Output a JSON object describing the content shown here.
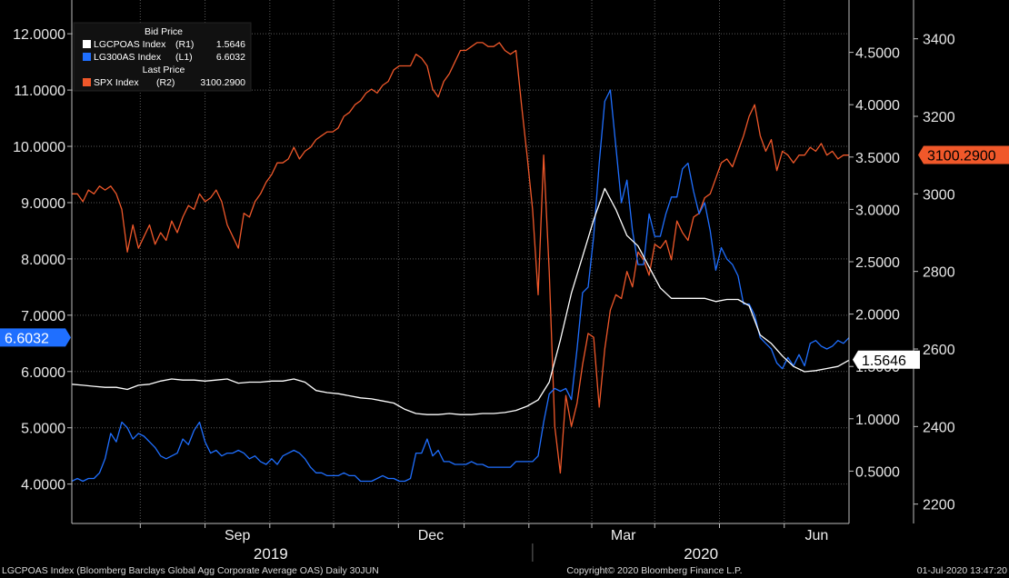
{
  "chart_data": {
    "type": "line",
    "legend": {
      "bid_header": "Bid Price",
      "last_header": "Last Price",
      "entries": [
        {
          "name": "LGCPOAS Index",
          "axis": "(R1)",
          "value": "1.5646",
          "color": "#ffffff"
        },
        {
          "name": "LG300AS Index",
          "axis": "(L1)",
          "value": "6.6032",
          "color": "#1f6fff"
        },
        {
          "name": "SPX Index",
          "axis": "(R2)",
          "value": "3100.2900",
          "color": "#f0582a"
        }
      ],
      "placement": "top-left"
    },
    "x_ticks": [
      "Sep",
      "Dec",
      "Mar",
      "Jun"
    ],
    "x_years": [
      "2019",
      "2020"
    ],
    "left_axis": {
      "ylim": [
        3.3,
        12.6
      ],
      "ticks": [
        "4.0000",
        "5.0000",
        "6.0000",
        "7.0000",
        "8.0000",
        "9.0000",
        "10.0000",
        "11.0000",
        "12.0000"
      ]
    },
    "right1_axis": {
      "ylim": [
        0.0,
        5.0
      ],
      "ticks": [
        "0.5000",
        "1.0000",
        "1.5000",
        "2.0000",
        "2.5000",
        "3.0000",
        "3.5000",
        "4.0000",
        "4.5000"
      ]
    },
    "right2_axis": {
      "ylim": [
        2150,
        3500
      ],
      "ticks": [
        "2200",
        "2400",
        "2600",
        "2800",
        "3000",
        "3200",
        "3400"
      ]
    },
    "last_value_tags": {
      "left": "6.6032",
      "right1": "1.5646",
      "right2": "3100.2900"
    },
    "grid": true,
    "series": [
      {
        "name": "LG300AS Index",
        "axis": "left",
        "color": "#1f6fff",
        "x": [
          0,
          6,
          12,
          18,
          24,
          30,
          36,
          42,
          48,
          54,
          60,
          66,
          72,
          78,
          84,
          90,
          96,
          102,
          108,
          114,
          120,
          126,
          132,
          138,
          144,
          150,
          156,
          162,
          168,
          174,
          180,
          186,
          192,
          198,
          204,
          210,
          216,
          222,
          228,
          234,
          240,
          246,
          252,
          258,
          264,
          270,
          276,
          282,
          288,
          294,
          300,
          306,
          312,
          318,
          324,
          330,
          336,
          342,
          348,
          354,
          360,
          366,
          372,
          378,
          384,
          390,
          396,
          402,
          408,
          414,
          420,
          426,
          432,
          438,
          444,
          450,
          456,
          462,
          468,
          474,
          480,
          486,
          492,
          498,
          504,
          510,
          516,
          522,
          528,
          534,
          540,
          546,
          552,
          558,
          564,
          570,
          576,
          582,
          588,
          594,
          600,
          606,
          612,
          618,
          624,
          630,
          636,
          642,
          648,
          654,
          660,
          666,
          672,
          678,
          684,
          690,
          696,
          702,
          708,
          714,
          720,
          726,
          732,
          738,
          744,
          750,
          756,
          762,
          768,
          774,
          780,
          786,
          792,
          798,
          804,
          810,
          816,
          822,
          828,
          834,
          840
        ],
        "values": [
          4.05,
          4.1,
          4.05,
          4.1,
          4.1,
          4.2,
          4.45,
          4.9,
          4.75,
          5.1,
          5.0,
          4.8,
          4.9,
          4.85,
          4.75,
          4.65,
          4.5,
          4.45,
          4.5,
          4.55,
          4.8,
          4.7,
          4.95,
          5.1,
          4.75,
          4.55,
          4.6,
          4.5,
          4.55,
          4.55,
          4.6,
          4.55,
          4.45,
          4.5,
          4.4,
          4.35,
          4.45,
          4.35,
          4.5,
          4.55,
          4.6,
          4.55,
          4.45,
          4.3,
          4.2,
          4.2,
          4.15,
          4.15,
          4.15,
          4.2,
          4.15,
          4.15,
          4.05,
          4.05,
          4.05,
          4.1,
          4.15,
          4.1,
          4.1,
          4.05,
          4.05,
          4.1,
          4.55,
          4.55,
          4.8,
          4.5,
          4.6,
          4.4,
          4.4,
          4.35,
          4.35,
          4.35,
          4.4,
          4.35,
          4.35,
          4.3,
          4.3,
          4.3,
          4.3,
          4.3,
          4.4,
          4.4,
          4.4,
          4.4,
          4.5,
          5.1,
          5.6,
          5.7,
          5.65,
          5.7,
          5.5,
          6.4,
          7.4,
          7.5,
          8.4,
          9.7,
          10.8,
          11.0,
          10.0,
          9.0,
          9.4,
          8.5,
          7.9,
          7.9,
          8.8,
          8.4,
          8.4,
          8.8,
          9.1,
          9.1,
          9.6,
          9.7,
          9.2,
          8.8,
          9.0,
          8.5,
          7.8,
          8.2,
          8.0,
          7.9,
          7.7,
          7.2,
          7.2,
          7.0,
          6.6,
          6.5,
          6.4,
          6.15,
          6.05,
          6.25,
          6.1,
          6.3,
          6.1,
          6.5,
          6.55,
          6.45,
          6.4,
          6.45,
          6.55,
          6.5,
          6.6
        ]
      },
      {
        "name": "LGCPOAS Index",
        "axis": "right1",
        "color": "#ffffff",
        "x": [
          0,
          12,
          24,
          36,
          48,
          60,
          72,
          84,
          96,
          108,
          120,
          132,
          144,
          156,
          168,
          180,
          192,
          204,
          216,
          228,
          240,
          252,
          264,
          276,
          288,
          300,
          312,
          324,
          336,
          348,
          360,
          372,
          384,
          396,
          408,
          420,
          432,
          444,
          456,
          468,
          480,
          492,
          504,
          516,
          528,
          540,
          552,
          564,
          576,
          588,
          600,
          612,
          624,
          636,
          648,
          660,
          672,
          684,
          696,
          708,
          720,
          732,
          744,
          756,
          768,
          780,
          792,
          804,
          816,
          828,
          840
        ],
        "values": [
          1.33,
          1.32,
          1.31,
          1.3,
          1.3,
          1.28,
          1.32,
          1.33,
          1.36,
          1.38,
          1.37,
          1.37,
          1.36,
          1.37,
          1.38,
          1.34,
          1.35,
          1.35,
          1.36,
          1.36,
          1.38,
          1.35,
          1.27,
          1.25,
          1.24,
          1.22,
          1.2,
          1.19,
          1.17,
          1.15,
          1.09,
          1.05,
          1.04,
          1.04,
          1.05,
          1.04,
          1.04,
          1.05,
          1.05,
          1.06,
          1.08,
          1.12,
          1.18,
          1.35,
          1.75,
          2.2,
          2.55,
          2.9,
          3.2,
          3.0,
          2.75,
          2.65,
          2.45,
          2.25,
          2.15,
          2.15,
          2.15,
          2.15,
          2.12,
          2.14,
          2.14,
          2.08,
          1.8,
          1.72,
          1.6,
          1.5,
          1.45,
          1.46,
          1.48,
          1.5,
          1.56
        ]
      },
      {
        "name": "SPX Index",
        "axis": "right2",
        "color": "#f0582a",
        "x": [
          0,
          6,
          12,
          18,
          24,
          30,
          36,
          42,
          48,
          54,
          60,
          66,
          72,
          78,
          84,
          90,
          96,
          102,
          108,
          114,
          120,
          126,
          132,
          138,
          144,
          150,
          156,
          162,
          168,
          174,
          180,
          186,
          192,
          198,
          204,
          210,
          216,
          222,
          228,
          234,
          240,
          246,
          252,
          258,
          264,
          270,
          276,
          282,
          288,
          294,
          300,
          306,
          312,
          318,
          324,
          330,
          336,
          342,
          348,
          354,
          360,
          366,
          372,
          378,
          384,
          390,
          396,
          402,
          408,
          414,
          420,
          426,
          432,
          438,
          444,
          450,
          456,
          462,
          468,
          474,
          480,
          486,
          492,
          498,
          504,
          510,
          516,
          522,
          528,
          534,
          540,
          546,
          552,
          558,
          564,
          570,
          576,
          582,
          588,
          594,
          600,
          606,
          612,
          618,
          624,
          630,
          636,
          642,
          648,
          654,
          660,
          666,
          672,
          678,
          684,
          690,
          696,
          702,
          708,
          714,
          720,
          726,
          732,
          738,
          744,
          750,
          756,
          762,
          768,
          774,
          780,
          786,
          792,
          798,
          804,
          810,
          816,
          822,
          828,
          834,
          840
        ],
        "values": [
          3000,
          3000,
          2980,
          3010,
          3000,
          3020,
          3010,
          3020,
          3000,
          2960,
          2850,
          2920,
          2860,
          2890,
          2920,
          2870,
          2900,
          2880,
          2930,
          2900,
          2940,
          2970,
          2960,
          3000,
          2980,
          2990,
          3010,
          2980,
          2920,
          2890,
          2860,
          2950,
          2940,
          2980,
          3000,
          3030,
          3050,
          3080,
          3080,
          3090,
          3120,
          3090,
          3110,
          3120,
          3140,
          3150,
          3160,
          3160,
          3170,
          3200,
          3210,
          3230,
          3240,
          3260,
          3270,
          3260,
          3280,
          3290,
          3320,
          3330,
          3330,
          3330,
          3360,
          3350,
          3330,
          3270,
          3250,
          3290,
          3310,
          3340,
          3370,
          3370,
          3380,
          3390,
          3390,
          3380,
          3380,
          3390,
          3370,
          3360,
          3370,
          3230,
          3100,
          2960,
          2740,
          3100,
          2800,
          2400,
          2280,
          2480,
          2400,
          2460,
          2560,
          2640,
          2630,
          2450,
          2600,
          2700,
          2740,
          2730,
          2800,
          2760,
          2850,
          2830,
          2790,
          2870,
          2860,
          2880,
          2830,
          2930,
          2900,
          2880,
          2940,
          2950,
          2990,
          3000,
          3040,
          3080,
          3090,
          3070,
          3110,
          3150,
          3200,
          3230,
          3150,
          3110,
          3140,
          3060,
          3110,
          3100,
          3080,
          3100,
          3100,
          3120,
          3110,
          3130,
          3100,
          3110,
          3090,
          3100,
          3100
        ]
      }
    ]
  },
  "footer": {
    "left": "LGCPOAS Index (Bloomberg Barclays Global Agg Corporate Average OAS)  Daily 30JUN",
    "center": "Copyright© 2020 Bloomberg Finance L.P.",
    "right": "01-Jul-2020 13:47:20"
  }
}
